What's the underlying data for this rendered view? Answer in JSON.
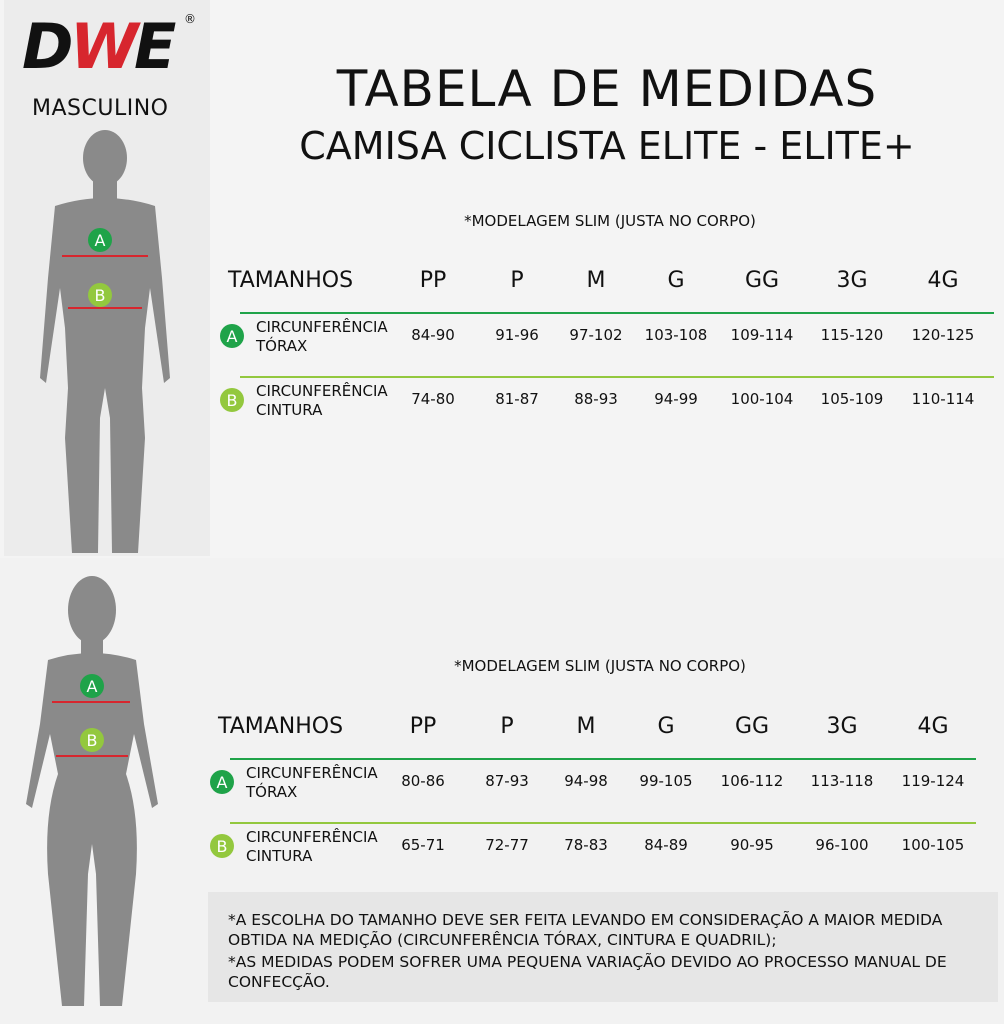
{
  "brand": {
    "logo_text": "DWE",
    "registered_mark": "®"
  },
  "gender_label": "MASCULINO",
  "title": "TABELA DE MEDIDAS",
  "subtitle": "CAMISA CICLISTA ELITE - ELITE+",
  "colors": {
    "measure_a": "#1fa349",
    "measure_b": "#93c83e",
    "silhouette": "#8a8a8a"
  },
  "tables": [
    {
      "note": "*MODELAGEM SLIM (JUSTA NO CORPO)",
      "header_label": "TAMANHOS",
      "sizes": [
        "PP",
        "P",
        "M",
        "G",
        "GG",
        "3G",
        "4G"
      ],
      "rows": [
        {
          "badge": "A",
          "label_line1": "CIRCUNFERÊNCIA",
          "label_line2": "TÓRAX",
          "values": [
            "84-90",
            "91-96",
            "97-102",
            "103-108",
            "109-114",
            "115-120",
            "120-125"
          ]
        },
        {
          "badge": "B",
          "label_line1": "CIRCUNFERÊNCIA",
          "label_line2": "CINTURA",
          "values": [
            "74-80",
            "81-87",
            "88-93",
            "94-99",
            "100-104",
            "105-109",
            "110-114"
          ]
        }
      ]
    },
    {
      "note": "*MODELAGEM SLIM (JUSTA NO CORPO)",
      "header_label": "TAMANHOS",
      "sizes": [
        "PP",
        "P",
        "M",
        "G",
        "GG",
        "3G",
        "4G"
      ],
      "rows": [
        {
          "badge": "A",
          "label_line1": "CIRCUNFERÊNCIA",
          "label_line2": "TÓRAX",
          "values": [
            "80-86",
            "87-93",
            "94-98",
            "99-105",
            "106-112",
            "113-118",
            "119-124"
          ]
        },
        {
          "badge": "B",
          "label_line1": "CIRCUNFERÊNCIA",
          "label_line2": "CINTURA",
          "values": [
            "65-71",
            "72-77",
            "78-83",
            "84-89",
            "90-95",
            "96-100",
            "100-105"
          ]
        }
      ]
    }
  ],
  "figure_badges": {
    "a": "A",
    "b": "B"
  },
  "footer": {
    "line1": "*A ESCOLHA DO TAMANHO DEVE SER FEITA LEVANDO EM CONSIDERAÇÃO A MAIOR MEDIDA OBTIDA NA MEDIÇÃO (CIRCUNFERÊNCIA TÓRAX, CINTURA E QUADRIL);",
    "line2": "*AS MEDIDAS PODEM SOFRER UMA PEQUENA VARIAÇÃO DEVIDO AO PROCESSO MANUAL DE CONFECÇÃO."
  }
}
